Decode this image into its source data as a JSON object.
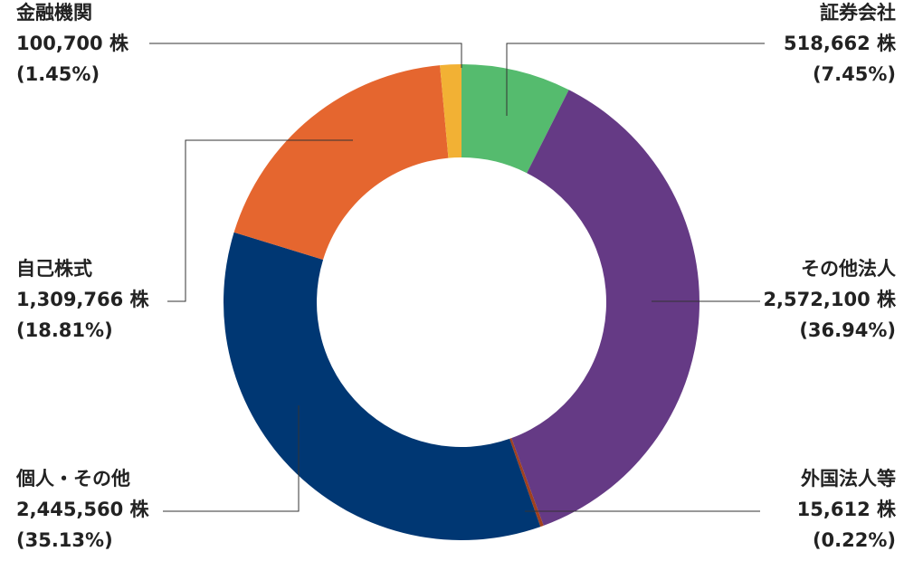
{
  "chart_data": {
    "type": "donut",
    "categories": [
      "証券会社",
      "その他法人",
      "外国法人等",
      "個人・その他",
      "自己株式",
      "金融機関"
    ],
    "values": [
      518662,
      2572100,
      15612,
      2445560,
      1309766,
      100700
    ],
    "value_labels": [
      "518,662 株",
      "2,572,100 株",
      "15,612 株",
      "2,445,560 株",
      "1,309,766 株",
      "100,700 株"
    ],
    "percents": [
      7.45,
      36.94,
      0.22,
      35.13,
      18.81,
      1.45
    ],
    "percent_labels": [
      "(7.45%)",
      "(36.94%)",
      "(0.22%)",
      "(35.13%)",
      "(18.81%)",
      "(1.45%)"
    ],
    "colors": [
      "#55bb6e",
      "#653a85",
      "#a0401e",
      "#003773",
      "#e5662f",
      "#f2b134"
    ]
  }
}
